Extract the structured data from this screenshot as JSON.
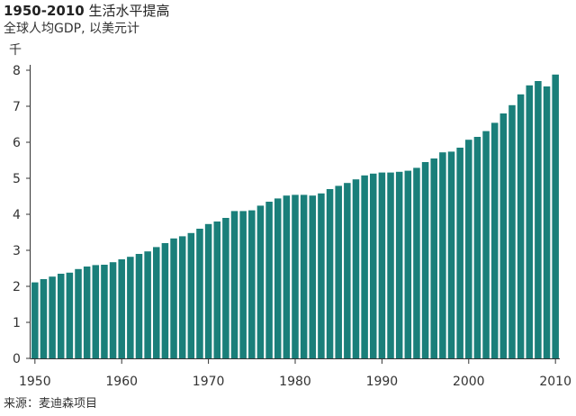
{
  "header": {
    "title_bold": "1950-2010",
    "title_rest": " 生活水平提高",
    "subtitle": "全球人均GDP, 以美元计",
    "unit": "千"
  },
  "footer": {
    "source": "来源：麦迪森项目"
  },
  "colors": {
    "bar": "#1a7f7a",
    "axis": "#333333",
    "grid": "#cccccc"
  },
  "chart_data": {
    "type": "bar",
    "title": "1950-2010 生活水平提高",
    "subtitle": "全球人均GDP, 以美元计",
    "ylabel": "千",
    "xlabel": "",
    "ylim": [
      0,
      8
    ],
    "yticks": [
      0,
      1,
      2,
      3,
      4,
      5,
      6,
      7,
      8
    ],
    "xtick_labels": [
      "1950",
      "1960",
      "1970",
      "1980",
      "1990",
      "2000",
      "2010"
    ],
    "grid": false,
    "categories": [
      1950,
      1951,
      1952,
      1953,
      1954,
      1955,
      1956,
      1957,
      1958,
      1959,
      1960,
      1961,
      1962,
      1963,
      1964,
      1965,
      1966,
      1967,
      1968,
      1969,
      1970,
      1971,
      1972,
      1973,
      1974,
      1975,
      1976,
      1977,
      1978,
      1979,
      1980,
      1981,
      1982,
      1983,
      1984,
      1985,
      1986,
      1987,
      1988,
      1989,
      1990,
      1991,
      1992,
      1993,
      1994,
      1995,
      1996,
      1997,
      1998,
      1999,
      2000,
      2001,
      2002,
      2003,
      2004,
      2005,
      2006,
      2007,
      2008,
      2009,
      2010
    ],
    "values": [
      2.11,
      2.2,
      2.27,
      2.35,
      2.38,
      2.48,
      2.55,
      2.59,
      2.6,
      2.67,
      2.75,
      2.82,
      2.9,
      2.97,
      3.09,
      3.2,
      3.33,
      3.39,
      3.48,
      3.6,
      3.73,
      3.8,
      3.9,
      4.09,
      4.09,
      4.11,
      4.24,
      4.35,
      4.44,
      4.52,
      4.54,
      4.54,
      4.52,
      4.58,
      4.7,
      4.79,
      4.87,
      4.97,
      5.08,
      5.13,
      5.16,
      5.16,
      5.18,
      5.21,
      5.29,
      5.45,
      5.55,
      5.72,
      5.74,
      5.85,
      6.07,
      6.15,
      6.31,
      6.54,
      6.8,
      7.03,
      7.33,
      7.58,
      7.7,
      7.55,
      7.88
    ]
  }
}
